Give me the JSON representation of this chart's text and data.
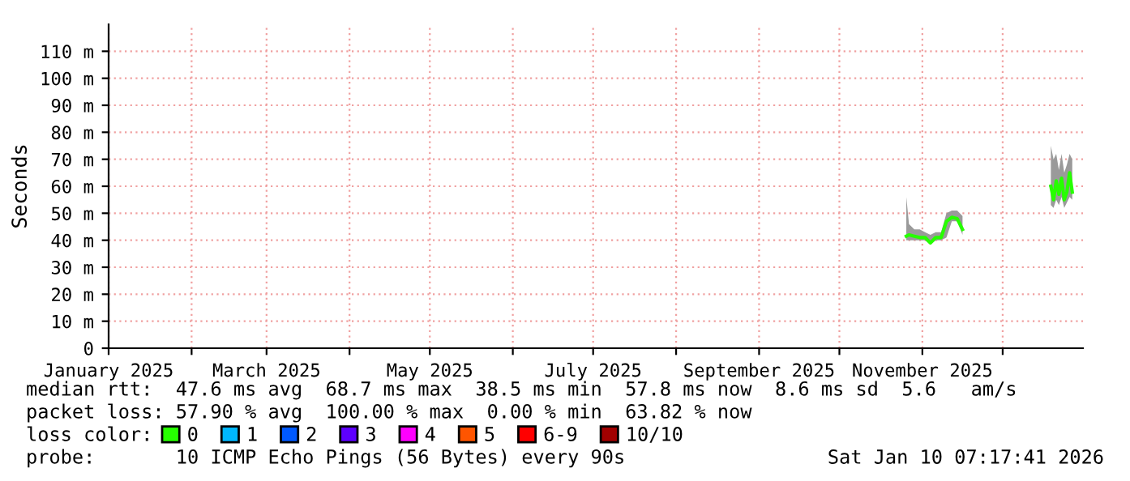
{
  "chart_data": {
    "type": "line",
    "ylabel": "Seconds",
    "legend_title": "loss color:",
    "legend": "bottom",
    "grid": true,
    "x": [
      "2025-10-26",
      "2025-10-27",
      "2025-10-29",
      "2025-10-31",
      "2025-11-02",
      "2025-11-04",
      "2025-11-06",
      "2025-11-08",
      "2025-11-10",
      "2025-11-12",
      "2025-11-14",
      "2025-11-16",
      "2025-11-30",
      "2025-12-19",
      "2025-12-20",
      "2025-12-21",
      "2025-12-22",
      "2025-12-23",
      "2025-12-24",
      "2025-12-25",
      "2025-12-26",
      "2025-12-27"
    ],
    "series": [
      {
        "name": "0",
        "color": "#26ff00",
        "values": [
          41.5,
          42,
          41.5,
          41,
          41,
          39,
          41,
          41,
          47,
          48.5,
          48,
          44,
          null,
          60,
          55,
          62,
          57,
          63,
          55,
          58,
          65,
          57.8
        ],
        "lower": [
          40,
          40,
          40,
          40,
          40,
          38.5,
          40,
          40,
          41,
          47,
          47,
          42,
          null,
          53,
          52,
          55,
          53,
          56,
          52,
          54,
          56,
          55
        ],
        "upper": [
          56,
          46,
          44,
          44,
          43,
          42,
          43,
          43,
          50,
          51,
          51,
          49,
          null,
          75,
          70,
          72,
          66,
          72,
          65,
          68,
          72,
          70
        ]
      },
      {
        "name": "1",
        "color": "#00b8ff",
        "values": [
          null,
          null,
          null,
          null,
          null,
          null,
          null,
          null,
          null,
          null,
          null,
          null,
          null,
          null,
          null,
          null,
          null,
          null,
          null,
          null,
          null,
          null
        ]
      },
      {
        "name": "2",
        "color": "#0059ff",
        "values": [
          null,
          null,
          null,
          null,
          null,
          null,
          null,
          null,
          null,
          null,
          null,
          null,
          null,
          null,
          null,
          null,
          null,
          null,
          null,
          null,
          null,
          null
        ]
      },
      {
        "name": "3",
        "color": "#5e00ff",
        "values": [
          null,
          null,
          null,
          null,
          null,
          null,
          null,
          null,
          null,
          null,
          null,
          null,
          null,
          null,
          null,
          null,
          null,
          null,
          null,
          null,
          null,
          null
        ]
      },
      {
        "name": "4",
        "color": "#ff00ff",
        "values": [
          null,
          null,
          null,
          null,
          null,
          null,
          null,
          null,
          null,
          null,
          null,
          null,
          null,
          null,
          null,
          null,
          null,
          null,
          null,
          null,
          null,
          null
        ]
      },
      {
        "name": "5",
        "color": "#ff5500",
        "values": [
          null,
          null,
          null,
          null,
          null,
          null,
          null,
          null,
          null,
          null,
          null,
          null,
          null,
          null,
          null,
          null,
          null,
          null,
          null,
          null,
          null,
          null
        ]
      },
      {
        "name": "6-9",
        "color": "#ff0000",
        "values": [
          null,
          null,
          null,
          null,
          null,
          null,
          null,
          null,
          null,
          null,
          null,
          null,
          null,
          null,
          null,
          null,
          null,
          null,
          null,
          null,
          null,
          null
        ]
      },
      {
        "name": "10/10",
        "color": "#a10000",
        "values": [
          null,
          null,
          null,
          null,
          null,
          null,
          null,
          null,
          null,
          null,
          null,
          null,
          null,
          null,
          null,
          null,
          null,
          null,
          null,
          null,
          null,
          null
        ]
      }
    ],
    "xlim": [
      "2025-01-01",
      "2025-12-31"
    ],
    "xticks": [
      {
        "value": "2025-01-01",
        "label": "January 2025"
      },
      {
        "value": "2025-02-01",
        "label": null
      },
      {
        "value": "2025-03-01",
        "label": "March 2025"
      },
      {
        "value": "2025-04-01",
        "label": null
      },
      {
        "value": "2025-05-01",
        "label": "May 2025"
      },
      {
        "value": "2025-06-01",
        "label": null
      },
      {
        "value": "2025-07-01",
        "label": "July 2025"
      },
      {
        "value": "2025-08-01",
        "label": null
      },
      {
        "value": "2025-09-01",
        "label": "September 2025"
      },
      {
        "value": "2025-10-01",
        "label": null
      },
      {
        "value": "2025-11-01",
        "label": "November 2025"
      },
      {
        "value": "2025-12-01",
        "label": null
      }
    ],
    "ylim": [
      0,
      120
    ],
    "yticks": [
      0,
      {
        "value": 10,
        "label": "10 m"
      },
      {
        "value": 20,
        "label": "20 m"
      },
      {
        "value": 30,
        "label": "30 m"
      },
      {
        "value": 40,
        "label": "40 m"
      },
      {
        "value": 50,
        "label": "50 m"
      },
      {
        "value": 60,
        "label": "60 m"
      },
      {
        "value": 70,
        "label": "70 m"
      },
      {
        "value": 80,
        "label": "80 m"
      },
      {
        "value": 90,
        "label": "90 m"
      },
      {
        "value": 100,
        "label": "100 m"
      },
      {
        "value": 110,
        "label": "110 m"
      }
    ],
    "annotations": [
      "median rtt:  47.6 ms avg  68.7 ms max  38.5 ms min  57.8 ms now  8.6 ms sd  5.6   am/s",
      "packet loss: 57.90 % avg  100.00 % max  0.00 % min  63.82 % now",
      "probe:       10 ICMP Echo Pings (56 Bytes) every 90s",
      "Sat Jan 10 07:17:41 2026"
    ]
  }
}
